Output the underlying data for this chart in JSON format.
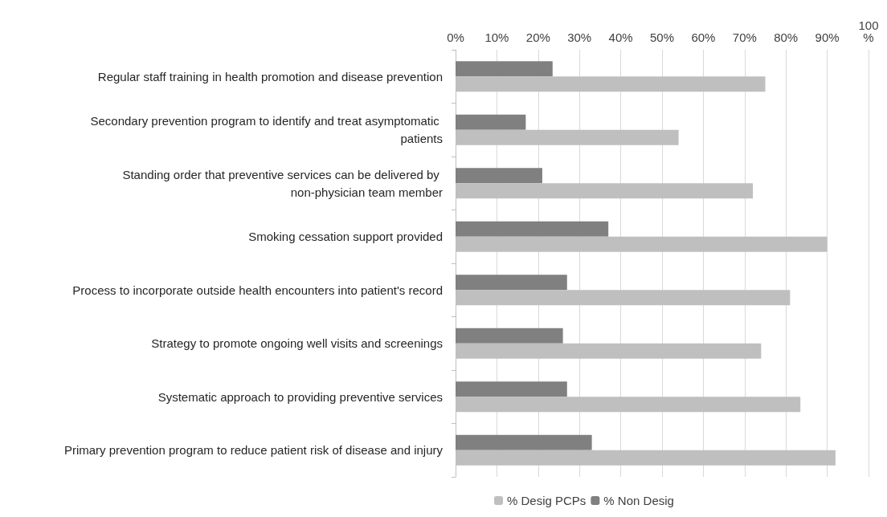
{
  "chart_data": {
    "type": "bar",
    "orientation": "horizontal",
    "categories": [
      "Regular staff training in health promotion and disease prevention",
      "Secondary prevention program to identify and treat asymptomatic patients",
      "Standing order that preventive services can be delivered by non-physician team member",
      "Smoking cessation support provided",
      "Process to incorporate outside health encounters into patient's record",
      "Strategy to promote ongoing well visits and screenings",
      "Systematic approach to providing preventive services",
      "Primary prevention program to reduce patient risk of disease and injury"
    ],
    "series": [
      {
        "name": "% Desig PCPs",
        "color": "#bfbfbf",
        "values": [
          75,
          54,
          72,
          90,
          81,
          74,
          83.5,
          92
        ]
      },
      {
        "name": "% Non Desig",
        "color": "#808080",
        "values": [
          23.5,
          17,
          21,
          37,
          27,
          26,
          27,
          33
        ]
      }
    ],
    "xlim": [
      0,
      100
    ],
    "xticks": [
      {
        "value": 0,
        "label": "0%"
      },
      {
        "value": 10,
        "label": "10%"
      },
      {
        "value": 20,
        "label": "20%"
      },
      {
        "value": 30,
        "label": "30%"
      },
      {
        "value": 40,
        "label": "40%"
      },
      {
        "value": 50,
        "label": "50%"
      },
      {
        "value": 60,
        "label": "60%"
      },
      {
        "value": 70,
        "label": "70%"
      },
      {
        "value": 80,
        "label": "80%"
      },
      {
        "value": 90,
        "label": "90%"
      },
      {
        "value": 100,
        "label": "100\n%"
      }
    ],
    "grid": "x",
    "legend": "bottom"
  }
}
